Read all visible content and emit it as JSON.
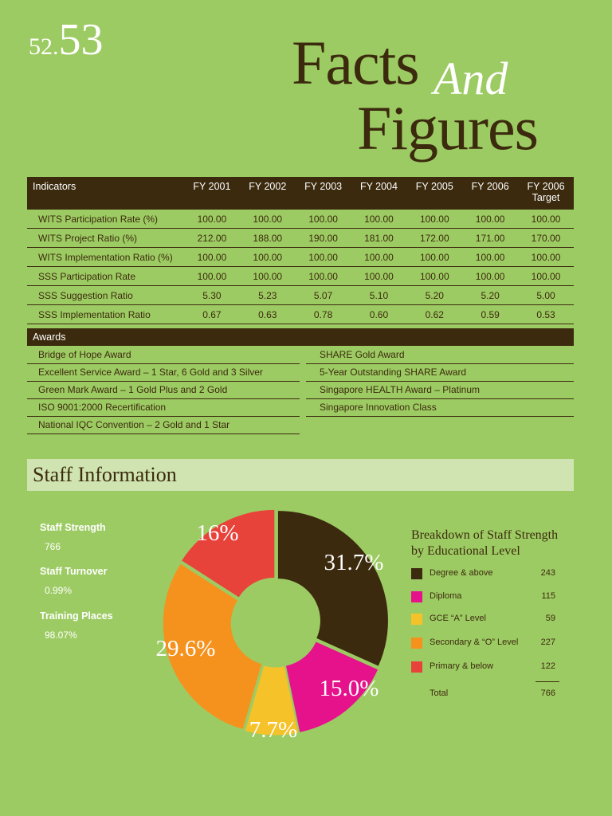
{
  "page_number": {
    "prefix": "52.",
    "main": "53"
  },
  "title": {
    "word1": "Facts",
    "word2": "And",
    "word3": "Figures"
  },
  "indicators": {
    "columns": [
      "Indicators",
      "FY 2001",
      "FY 2002",
      "FY 2003",
      "FY 2004",
      "FY 2005",
      "FY 2006",
      "FY 2006"
    ],
    "last_column_sub": "Target",
    "rows": [
      [
        "WITS Participation Rate (%)",
        "100.00",
        "100.00",
        "100.00",
        "100.00",
        "100.00",
        "100.00",
        "100.00"
      ],
      [
        "WITS Project Ratio (%)",
        "212.00",
        "188.00",
        "190.00",
        "181.00",
        "172.00",
        "171.00",
        "170.00"
      ],
      [
        "WITS Implementation Ratio (%)",
        "100.00",
        "100.00",
        "100.00",
        "100.00",
        "100.00",
        "100.00",
        "100.00"
      ],
      [
        "SSS Participation Rate",
        "100.00",
        "100.00",
        "100.00",
        "100.00",
        "100.00",
        "100.00",
        "100.00"
      ],
      [
        "SSS Suggestion Ratio",
        "5.30",
        "5.23",
        "5.07",
        "5.10",
        "5.20",
        "5.20",
        "5.00"
      ],
      [
        "SSS Implementation Ratio",
        "0.67",
        "0.63",
        "0.78",
        "0.60",
        "0.62",
        "0.59",
        "0.53"
      ]
    ]
  },
  "awards": {
    "header": "Awards",
    "left": [
      "Bridge of Hope Award",
      "Excellent Service Award – 1 Star, 6 Gold and 3 Silver",
      "Green Mark Award – 1 Gold Plus and 2 Gold",
      "ISO 9001:2000 Recertification",
      "National IQC Convention – 2 Gold and 1 Star"
    ],
    "right": [
      "SHARE Gold Award",
      "5-Year Outstanding SHARE Award",
      "Singapore HEALTH Award – Platinum",
      "Singapore Innovation Class"
    ]
  },
  "staff": {
    "heading": "Staff Information",
    "stats": [
      {
        "label": "Staff Strength",
        "value": "766"
      },
      {
        "label": "Staff Turnover",
        "value": "0.99%"
      },
      {
        "label": "Training Places",
        "value": "98.07%"
      }
    ]
  },
  "chart_data": {
    "type": "pie",
    "style": "donut",
    "title": "Breakdown of Staff Strength by Educational Level",
    "title_lines": [
      "Breakdown of Staff Strength",
      "by Educational Level"
    ],
    "categories": [
      "Degree & above",
      "Diploma",
      "GCE “A” Level",
      "Secondary & “O” Level",
      "Primary & below"
    ],
    "values": [
      243,
      115,
      59,
      227,
      122
    ],
    "percent_labels": [
      "31.7%",
      "15.0%",
      "7.7%",
      "29.6%",
      "16%"
    ],
    "colors": [
      "#3b2a0e",
      "#e6128c",
      "#f6c22a",
      "#f5921e",
      "#e8433a"
    ],
    "total_label": "Total",
    "total_value": "766"
  }
}
